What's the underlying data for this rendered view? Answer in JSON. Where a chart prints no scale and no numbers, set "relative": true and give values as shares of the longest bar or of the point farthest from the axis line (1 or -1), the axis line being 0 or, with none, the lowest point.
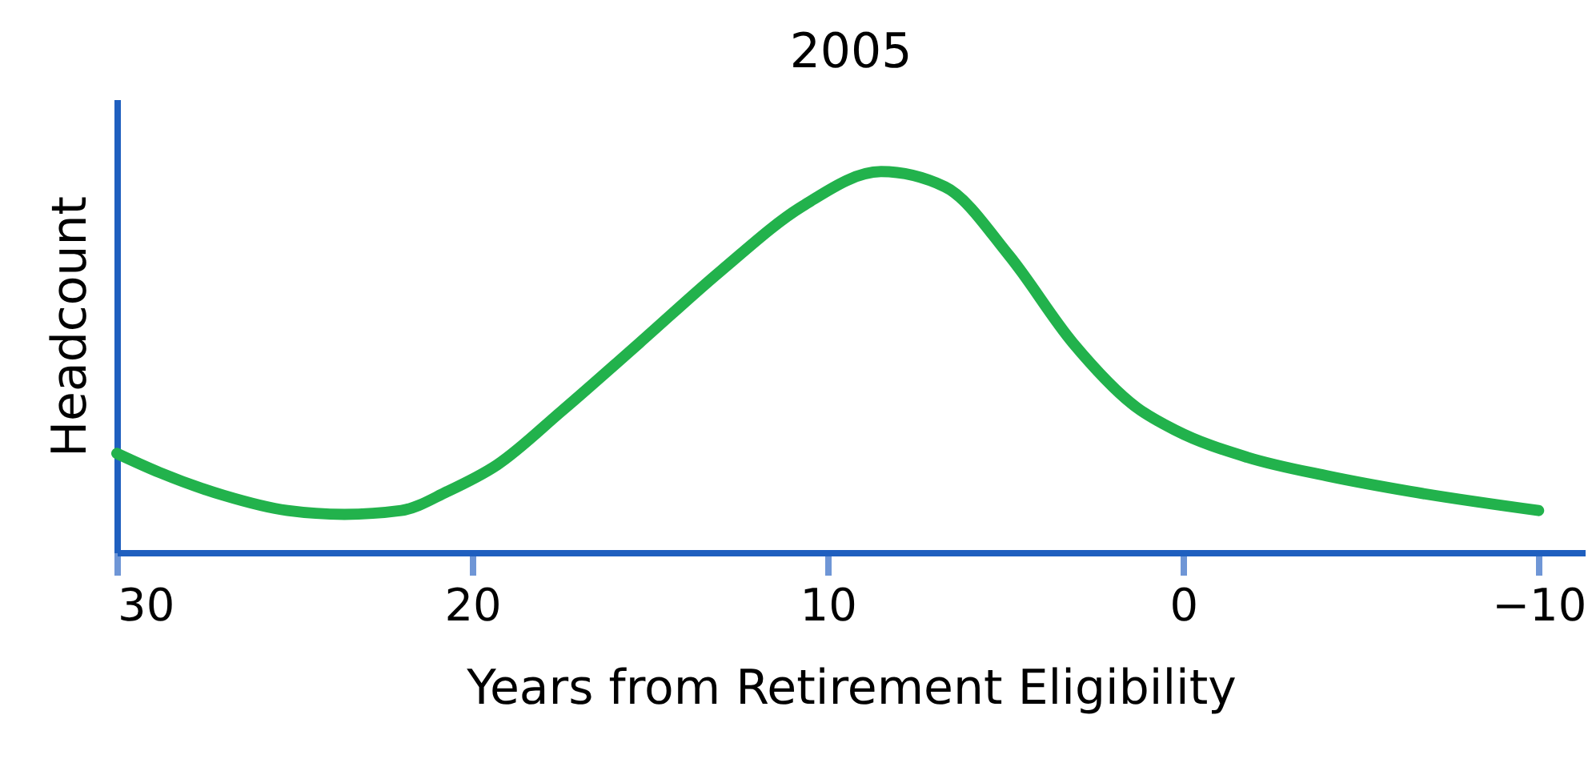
{
  "chart_data": {
    "type": "line",
    "title": "2005",
    "xlabel": "Years from Retirement Eligibility",
    "ylabel": "Headcount",
    "relative": true,
    "xlim": [
      30,
      -11.3
    ],
    "xticks": [
      30,
      20,
      10,
      0,
      -10
    ],
    "line_style": "solid",
    "x": [
      30,
      28.8,
      27.0,
      25.2,
      23.6,
      22.0,
      20.7,
      19.3,
      17.5,
      15.3,
      13.0,
      10.7,
      8.5,
      6.7,
      4.9,
      3.1,
      1.3,
      0.2,
      -1.8,
      -4.1,
      -6.4,
      -10
    ],
    "series": [
      {
        "color": "#22b24c",
        "values": [
          0.26,
          0.21,
          0.15,
          0.11,
          0.1,
          0.11,
          0.16,
          0.23,
          0.37,
          0.55,
          0.74,
          0.91,
          1.0,
          0.96,
          0.78,
          0.55,
          0.38,
          0.32,
          0.25,
          0.2,
          0.16,
          0.11
        ]
      }
    ]
  }
}
